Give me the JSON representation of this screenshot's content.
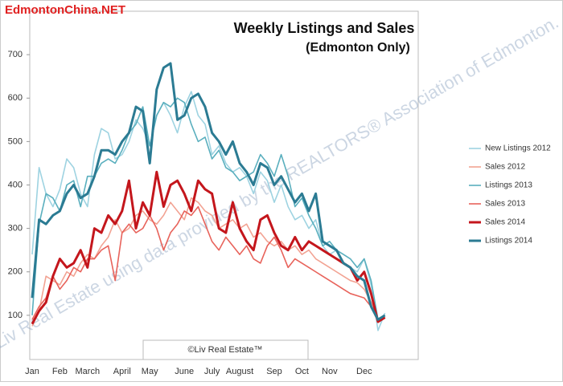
{
  "chart_data": {
    "type": "line",
    "title": "Weekly Listings and Sales",
    "subtitle": "(Edmonton Only)",
    "source": "EdmontonChina.NET",
    "copyright": "©Liv Real Estate™",
    "watermark": "Prepared by Liv Real Estate using data provided by the REALTORS® Association of Edmonton.",
    "categories": [
      "Jan",
      null,
      null,
      null,
      "Feb",
      null,
      null,
      null,
      "March",
      null,
      null,
      null,
      null,
      "April",
      null,
      null,
      null,
      "May",
      null,
      null,
      null,
      null,
      "June",
      null,
      null,
      null,
      "July",
      null,
      null,
      null,
      "August",
      null,
      null,
      null,
      null,
      "Sep",
      null,
      null,
      null,
      "Oct",
      null,
      null,
      null,
      "Nov",
      null,
      null,
      null,
      null,
      "Dec",
      null,
      null,
      null
    ],
    "ylim": [
      0,
      800
    ],
    "yticks": [
      100,
      200,
      300,
      400,
      500,
      600,
      700
    ],
    "grid": false,
    "legend": "right",
    "series": [
      {
        "name": "New Listings 2012",
        "color": "#9ed3e1",
        "line_width": 1.6,
        "values": [
          240,
          440,
          380,
          350,
          390,
          460,
          440,
          380,
          350,
          470,
          530,
          520,
          460,
          470,
          500,
          550,
          530,
          490,
          560,
          590,
          560,
          520,
          580,
          615,
          560,
          540,
          470,
          490,
          450,
          430,
          440,
          420,
          380,
          430,
          410,
          360,
          400,
          350,
          320,
          330,
          300,
          320,
          260,
          240,
          250,
          220,
          210,
          200,
          230,
          170,
          65,
          105
        ]
      },
      {
        "name": "Sales 2012",
        "color": "#f2a393",
        "line_width": 1.6,
        "values": [
          75,
          110,
          190,
          180,
          170,
          200,
          190,
          220,
          240,
          230,
          260,
          280,
          320,
          290,
          300,
          330,
          340,
          320,
          310,
          330,
          360,
          340,
          320,
          370,
          360,
          340,
          330,
          300,
          310,
          320,
          300,
          310,
          280,
          290,
          270,
          260,
          270,
          250,
          260,
          240,
          250,
          230,
          220,
          210,
          200,
          190,
          180,
          175,
          160,
          130,
          90,
          95
        ]
      },
      {
        "name": "Listings 2013",
        "color": "#5aafbe",
        "line_width": 1.6,
        "values": [
          100,
          310,
          380,
          370,
          340,
          400,
          410,
          350,
          420,
          420,
          450,
          460,
          450,
          480,
          520,
          540,
          580,
          490,
          560,
          590,
          580,
          600,
          590,
          540,
          500,
          510,
          460,
          480,
          440,
          430,
          410,
          420,
          430,
          470,
          450,
          420,
          470,
          420,
          350,
          370,
          330,
          300,
          260,
          270,
          250,
          240,
          230,
          210,
          230,
          180,
          90,
          95
        ]
      },
      {
        "name": "Sales 2013",
        "color": "#e8635b",
        "line_width": 1.6,
        "values": [
          90,
          120,
          140,
          190,
          160,
          180,
          210,
          200,
          230,
          230,
          250,
          260,
          180,
          290,
          310,
          290,
          300,
          330,
          300,
          250,
          290,
          310,
          340,
          330,
          350,
          310,
          270,
          250,
          280,
          260,
          240,
          260,
          230,
          220,
          260,
          280,
          250,
          210,
          230,
          220,
          210,
          200,
          190,
          180,
          170,
          160,
          150,
          145,
          140,
          120,
          85,
          95
        ]
      },
      {
        "name": "Sales 2014",
        "color": "#c4161c",
        "line_width": 3,
        "values": [
          80,
          110,
          130,
          190,
          230,
          210,
          220,
          250,
          210,
          300,
          290,
          330,
          310,
          340,
          410,
          300,
          360,
          330,
          430,
          350,
          400,
          410,
          380,
          340,
          410,
          390,
          380,
          300,
          290,
          360,
          300,
          270,
          250,
          320,
          330,
          290,
          260,
          250,
          280,
          250,
          270,
          260,
          250,
          240,
          230,
          220,
          210,
          180,
          200,
          150,
          85,
          95
        ]
      },
      {
        "name": "Listings 2014",
        "color": "#2b7b93",
        "line_width": 3,
        "values": [
          140,
          320,
          310,
          330,
          340,
          380,
          400,
          370,
          380,
          420,
          480,
          480,
          470,
          500,
          520,
          580,
          570,
          450,
          620,
          670,
          680,
          550,
          560,
          600,
          610,
          580,
          520,
          500,
          470,
          500,
          450,
          430,
          400,
          450,
          440,
          400,
          420,
          390,
          360,
          380,
          340,
          380,
          270,
          260,
          250,
          220,
          210,
          190,
          180,
          120,
          90,
          100
        ]
      }
    ]
  }
}
